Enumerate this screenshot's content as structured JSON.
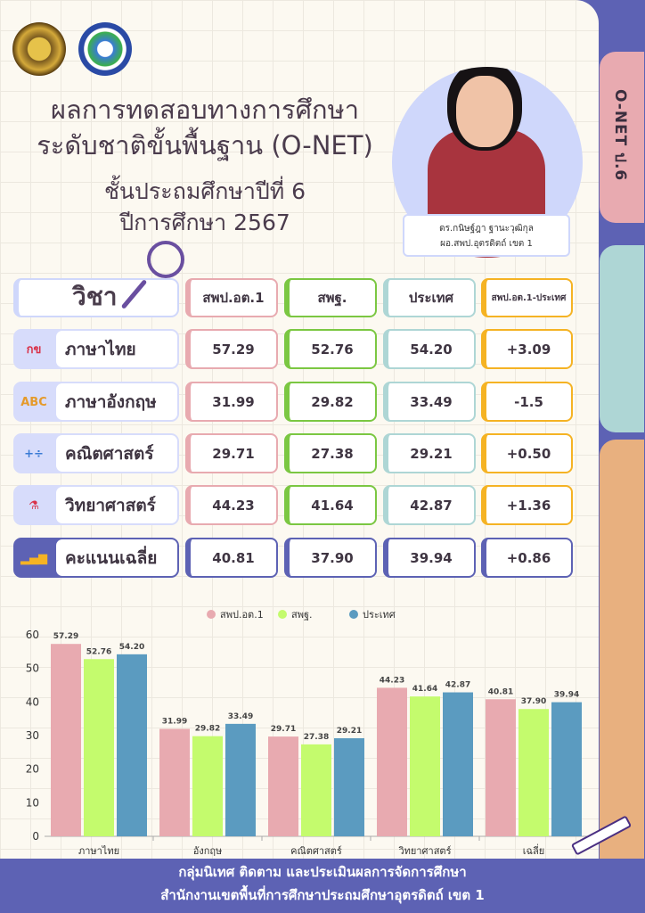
{
  "header": {
    "title_line1": "ผลการทดสอบทางการศึกษา",
    "title_line2": "ระดับชาติขั้นพื้นฐาน (O-NET)",
    "grade": "ชั้นประถมศึกษาปีที่ 6",
    "year": "ปีการศึกษา 2567"
  },
  "side_tab": "O-NET ป.6",
  "person": {
    "name": "ดร.กนิษฐ์ฎา ฐานะวุฒิกุล",
    "position": "ผอ.สพป.อุตรดิตถ์ เขต 1"
  },
  "table": {
    "headers": [
      "วิชา",
      "สพป.อต.1",
      "สพฐ.",
      "ประเทศ",
      "สพป.อต.1-ประเทศ"
    ],
    "rows": [
      {
        "subject": "ภาษาไทย",
        "icon": "thai-letters-icon",
        "values": [
          "57.29",
          "52.76",
          "54.20",
          "+3.09"
        ]
      },
      {
        "subject": "ภาษาอังกฤษ",
        "icon": "abc-icon",
        "values": [
          "31.99",
          "29.82",
          "33.49",
          "-1.5"
        ]
      },
      {
        "subject": "คณิตศาสตร์",
        "icon": "math-symbols-icon",
        "values": [
          "29.71",
          "27.38",
          "29.21",
          "+0.50"
        ]
      },
      {
        "subject": "วิทยาศาสตร์",
        "icon": "science-flask-icon",
        "values": [
          "44.23",
          "41.64",
          "42.87",
          "+1.36"
        ]
      },
      {
        "subject": "คะแนนเฉลี่ย",
        "icon": "bar-chart-clock-icon",
        "values": [
          "40.81",
          "37.90",
          "39.94",
          "+0.86"
        ]
      }
    ]
  },
  "colors": {
    "col1": "#e8aab0",
    "col2": "#7bc742",
    "col3": "#aed6d5",
    "col4": "#f5b324",
    "avg": "#5d62b4",
    "bar1": "#e8aab0",
    "bar2": "#c4fb6d",
    "bar3": "#5b9bc0"
  },
  "chart_data": {
    "type": "bar",
    "categories": [
      "ภาษาไทย",
      "อังกฤษ",
      "คณิตศาสตร์",
      "วิทยาศาสตร์",
      "เฉลี่ย"
    ],
    "series": [
      {
        "name": "สพป.อต.1",
        "values": [
          57.29,
          31.99,
          29.71,
          44.23,
          40.81
        ]
      },
      {
        "name": "สพฐ.",
        "values": [
          52.76,
          29.82,
          27.38,
          41.64,
          37.9
        ]
      },
      {
        "name": "ประเทศ",
        "values": [
          54.2,
          33.49,
          29.21,
          42.87,
          39.94
        ]
      }
    ],
    "ylim": [
      0,
      60
    ],
    "yticks": [
      0,
      10,
      20,
      30,
      40,
      50,
      60
    ],
    "legend": "top",
    "grid": false
  },
  "footer": {
    "line1": "กลุ่มนิเทศ ติดตาม และประเมินผลการจัดการศึกษา",
    "line2": "สำนักงานเขตพื้นที่การศึกษาประถมศึกษาอุตรดิตถ์ เขต 1"
  }
}
